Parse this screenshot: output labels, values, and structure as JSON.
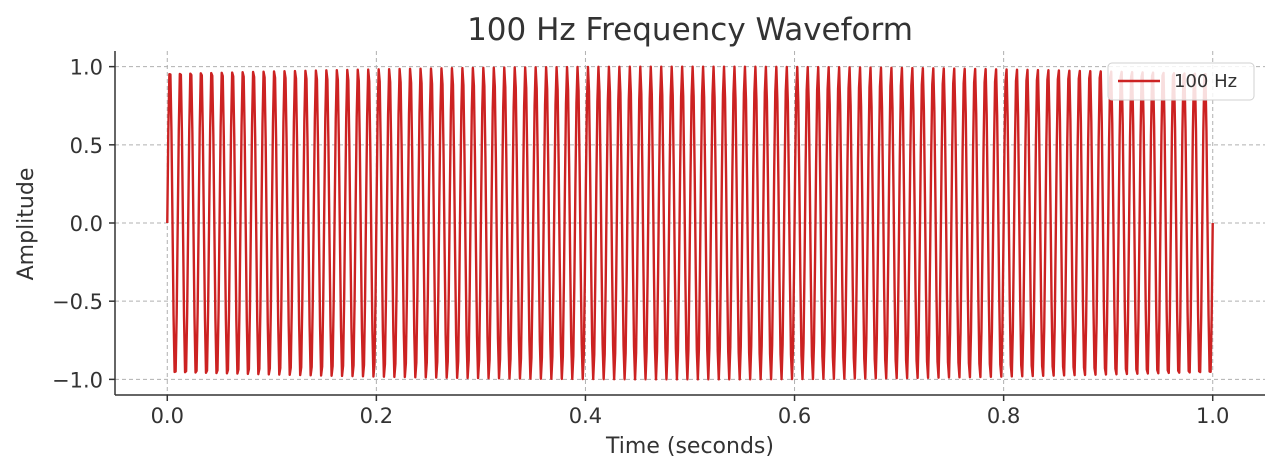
{
  "chart_data": {
    "type": "line",
    "title": "100 Hz Frequency Waveform",
    "xlabel": "Time (seconds)",
    "ylabel": "Amplitude",
    "xlim": [
      -0.05,
      1.05
    ],
    "ylim": [
      -1.1,
      1.1
    ],
    "x_ticks": [
      0.0,
      0.2,
      0.4,
      0.6,
      0.8,
      1.0
    ],
    "x_tick_labels": [
      "0.0",
      "0.2",
      "0.4",
      "0.6",
      "0.8",
      "1.0"
    ],
    "y_ticks": [
      1.0,
      0.5,
      0.0,
      -0.5,
      -1.0
    ],
    "y_tick_labels": [
      "1.0",
      "0.5",
      "0.0",
      "−0.5",
      "−1.0"
    ],
    "grid": true,
    "legend_position": "top-right",
    "series": [
      {
        "name": "100 Hz",
        "color": "#cc2222",
        "function": "sin",
        "frequency_hz": 100,
        "amplitude": 1.0,
        "x_range": [
          0.0,
          1.0
        ],
        "samples": 1000
      }
    ]
  }
}
